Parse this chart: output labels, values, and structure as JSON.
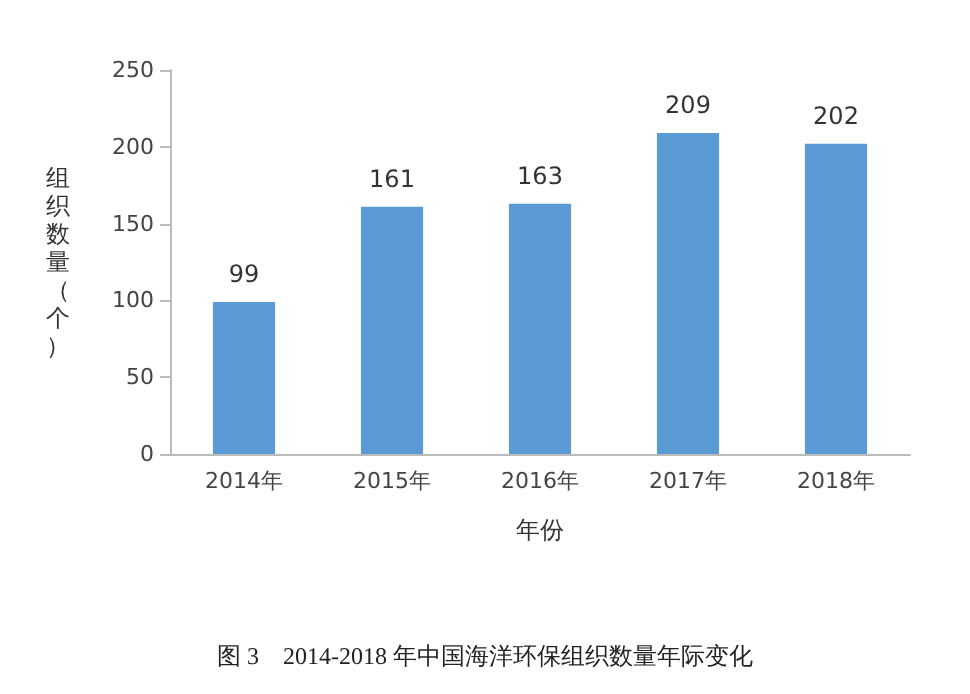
{
  "chart_data": {
    "type": "bar",
    "title": "图 3　2014-2018 年中国海洋环保组织数量年际变化",
    "xlabel": "年份",
    "ylabel": "组织数量（个）",
    "categories": [
      "2014年",
      "2015年",
      "2016年",
      "2017年",
      "2018年"
    ],
    "values": [
      99,
      161,
      163,
      209,
      202
    ],
    "color": "#5b9bd5",
    "data_labels": true,
    "ylim": [
      0,
      250
    ],
    "yticks": [
      0,
      50,
      100,
      150,
      200,
      250
    ],
    "grid": false
  }
}
